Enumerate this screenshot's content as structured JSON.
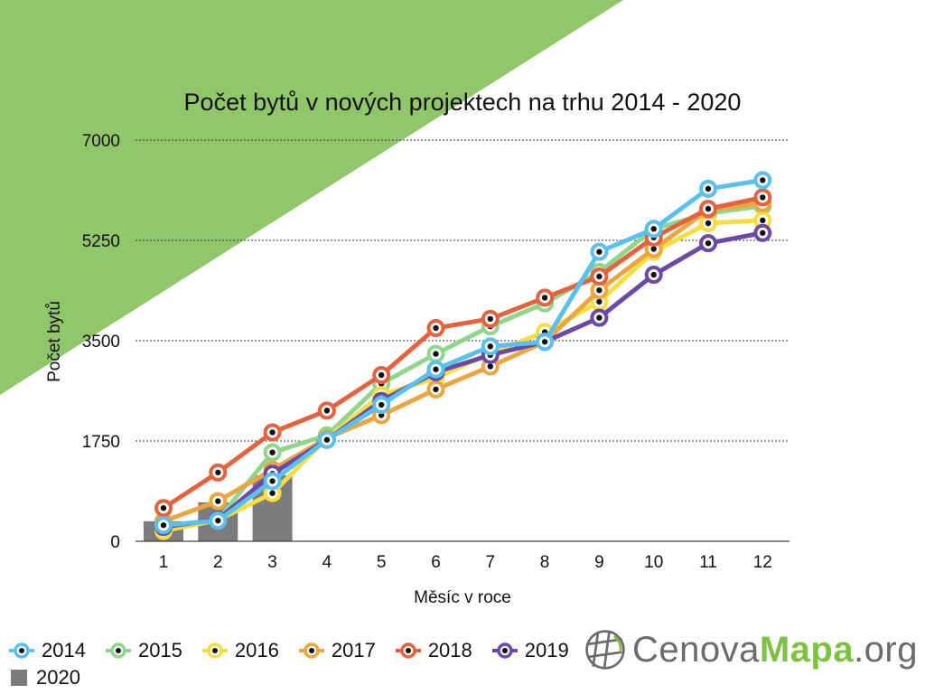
{
  "colors": {
    "background_triangle": "#92c66a",
    "gridline": "#333333",
    "bar_2020": "#7c7c7c"
  },
  "logo": {
    "text_a": "Cenova",
    "text_b": "Mapa",
    "text_c": ".org",
    "icon": "globe-icon"
  },
  "chart_data": {
    "type": "line",
    "title": "Počet bytů v nových projektech na trhu 2014 - 2020",
    "xlabel": "Měsíc v roce",
    "ylabel": "Počet bytů",
    "categories": [
      "1",
      "2",
      "3",
      "4",
      "5",
      "6",
      "7",
      "8",
      "9",
      "10",
      "11",
      "12"
    ],
    "y_ticks": [
      "0",
      "1750",
      "3500",
      "5250",
      "7000"
    ],
    "ylim": [
      0,
      7000
    ],
    "grid": "horizontal dotted",
    "legend_position": "bottom-left",
    "series": [
      {
        "name": "2015",
        "color": "#8fd58a",
        "values": [
          200,
          380,
          1550,
          1850,
          2750,
          3270,
          3750,
          4150,
          4700,
          5450,
          5720,
          5850
        ]
      },
      {
        "name": "2016",
        "color": "#f7dd3d",
        "values": [
          180,
          370,
          840,
          1800,
          2550,
          2850,
          3280,
          3650,
          4180,
          5050,
          5550,
          5600
        ]
      },
      {
        "name": "2017",
        "color": "#eda53f",
        "values": [
          350,
          700,
          1250,
          1800,
          2200,
          2650,
          3050,
          3480,
          4380,
          5100,
          5780,
          5900
        ]
      },
      {
        "name": "2019",
        "color": "#6a4aa6",
        "values": [
          250,
          380,
          1180,
          1770,
          2450,
          2950,
          3250,
          3480,
          3900,
          4650,
          5200,
          5380
        ]
      },
      {
        "name": "2018",
        "color": "#e5623f",
        "values": [
          580,
          1200,
          1900,
          2280,
          2900,
          3720,
          3880,
          4250,
          4620,
          5300,
          5800,
          6000
        ]
      },
      {
        "name": "2014",
        "color": "#5ac0ef",
        "values": [
          280,
          360,
          1050,
          1770,
          2380,
          3000,
          3400,
          3480,
          5050,
          5450,
          6150,
          6300
        ]
      }
    ],
    "bar_series": {
      "name": "2020",
      "color": "#7c7c7c",
      "values": [
        350,
        680,
        1150
      ]
    },
    "legend_order": [
      "2014",
      "2015",
      "2016",
      "2017",
      "2018",
      "2019",
      "2020"
    ]
  }
}
